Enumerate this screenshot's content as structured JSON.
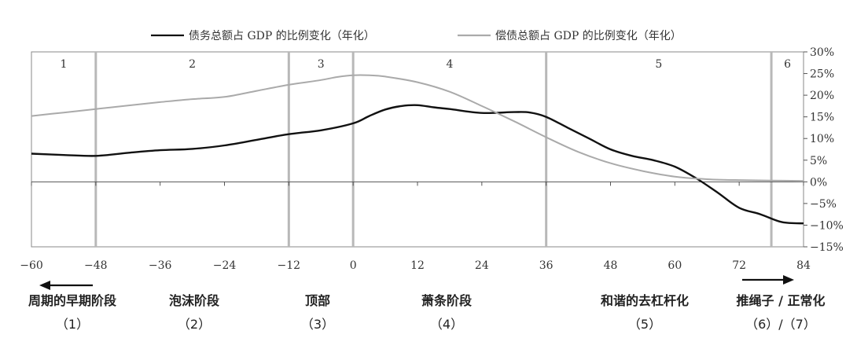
{
  "chart_data": {
    "type": "line",
    "title": "",
    "xlabel": "",
    "ylabel": "",
    "xlim": [
      -60,
      84
    ],
    "ylim": [
      -15,
      30
    ],
    "x_ticks": [
      -60,
      -48,
      -36,
      -24,
      -12,
      0,
      12,
      24,
      36,
      48,
      60,
      72,
      84
    ],
    "x_tick_labels": [
      "−60",
      "−48",
      "−36",
      "−24",
      "−12",
      "0",
      "12",
      "24",
      "36",
      "48",
      "60",
      "72",
      "84"
    ],
    "y_ticks": [
      30,
      25,
      20,
      15,
      10,
      5,
      0,
      -5,
      -10,
      -15
    ],
    "y_tick_labels": [
      "30%",
      "25%",
      "20%",
      "15%",
      "10%",
      "5%",
      "0%",
      "−5%",
      "−10%",
      "−15%"
    ],
    "y_axis_side": "right",
    "grid": false,
    "legend_position": "top",
    "zero_line": true,
    "region_boundaries": [
      -48,
      -12,
      0,
      36,
      78
    ],
    "regions": [
      {
        "label": "1",
        "x_start": -60,
        "x_end": -48
      },
      {
        "label": "2",
        "x_start": -48,
        "x_end": -12
      },
      {
        "label": "3",
        "x_start": -12,
        "x_end": 0
      },
      {
        "label": "4",
        "x_start": 0,
        "x_end": 36
      },
      {
        "label": "5",
        "x_start": 36,
        "x_end": 78
      },
      {
        "label": "6",
        "x_start": 78,
        "x_end": 84
      }
    ],
    "series": [
      {
        "name": "债务总额占 GDP 的比例变化（年化）",
        "color": "#111111",
        "x": [
          -60,
          -54,
          -48,
          -42,
          -36,
          -30,
          -24,
          -18,
          -12,
          -6,
          0,
          3,
          6,
          9,
          12,
          15,
          18,
          24,
          30,
          33,
          36,
          40,
          44,
          48,
          52,
          56,
          60,
          64,
          68,
          72,
          76,
          80,
          84
        ],
        "y": [
          6.5,
          6.2,
          6.0,
          6.7,
          7.3,
          7.6,
          8.4,
          9.7,
          11.0,
          11.9,
          13.5,
          15.2,
          16.7,
          17.5,
          17.7,
          17.2,
          16.8,
          15.9,
          16.1,
          16.0,
          15.0,
          12.5,
          10.0,
          7.5,
          6.0,
          5.0,
          3.5,
          0.8,
          -2.5,
          -6.0,
          -7.5,
          -9.3,
          -9.6
        ]
      },
      {
        "name": "偿债总额占 GDP 的比例变化（年化）",
        "color": "#aaaaaa",
        "x": [
          -60,
          -54,
          -48,
          -42,
          -36,
          -30,
          -24,
          -18,
          -12,
          -6,
          -3,
          0,
          3,
          6,
          12,
          18,
          24,
          30,
          36,
          42,
          48,
          54,
          60,
          66,
          72,
          78,
          84
        ],
        "y": [
          15.2,
          16.0,
          16.8,
          17.6,
          18.4,
          19.1,
          19.6,
          21.0,
          22.4,
          23.5,
          24.2,
          24.6,
          24.6,
          24.3,
          23.0,
          20.8,
          17.5,
          14.0,
          10.3,
          6.9,
          4.3,
          2.5,
          1.2,
          0.6,
          0.4,
          0.3,
          0.2
        ]
      }
    ],
    "phases": [
      {
        "label": "周期的早期阶段",
        "number": "（1）",
        "arrow": "left"
      },
      {
        "label": "泡沫阶段",
        "number": "（2）"
      },
      {
        "label": "顶部",
        "number": "（3）"
      },
      {
        "label": "萧条阶段",
        "number": "（4）"
      },
      {
        "label": "和谐的去杠杆化",
        "number": "（5）"
      },
      {
        "label": "推绳子 / 正常化",
        "number": "（6）/（7）",
        "arrow": "right"
      }
    ]
  }
}
